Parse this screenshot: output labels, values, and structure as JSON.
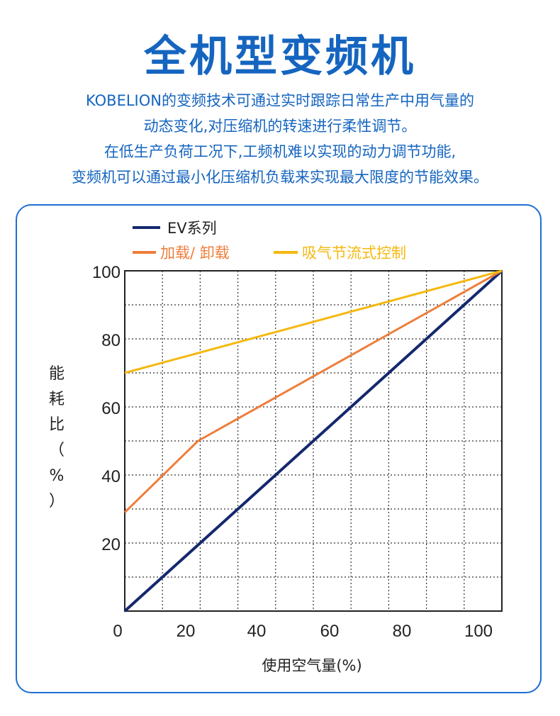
{
  "title": "全机型变频机",
  "intro_lines": [
    "KOBELION的变频技术可通过实时跟踪日常生产中用气量的",
    "动态变化,对压缩机的转速进行柔性调节。",
    "在低生产负荷工况下,工频机难以实现的动力调节功能,",
    "变频机可以通过最小化压缩机负载来实现最大限度的节能效果。"
  ],
  "colors": {
    "title": "#1565c0",
    "card_border": "#1f6fd1"
  },
  "chart_data": {
    "type": "line",
    "xlabel": "使用空气量(%)",
    "ylabel": "能耗比（%）",
    "xlim": [
      0,
      103
    ],
    "ylim": [
      0,
      100
    ],
    "x_ticks": [
      "0",
      "20",
      "40",
      "60",
      "80",
      "100"
    ],
    "y_ticks": [
      "20",
      "40",
      "60",
      "80",
      "100"
    ],
    "grid": true,
    "legend_position": "top",
    "series": [
      {
        "name": "EV系列",
        "color": "#14286e",
        "x": [
          0,
          103
        ],
        "y": [
          0,
          100
        ]
      },
      {
        "name": "加载/ 卸载",
        "color": "#ee7d3a",
        "x": [
          0,
          20,
          103
        ],
        "y": [
          29,
          50,
          100
        ]
      },
      {
        "name": "吸气节流式控制",
        "color": "#f5b80f",
        "x": [
          0,
          103
        ],
        "y": [
          70,
          100
        ]
      }
    ]
  }
}
